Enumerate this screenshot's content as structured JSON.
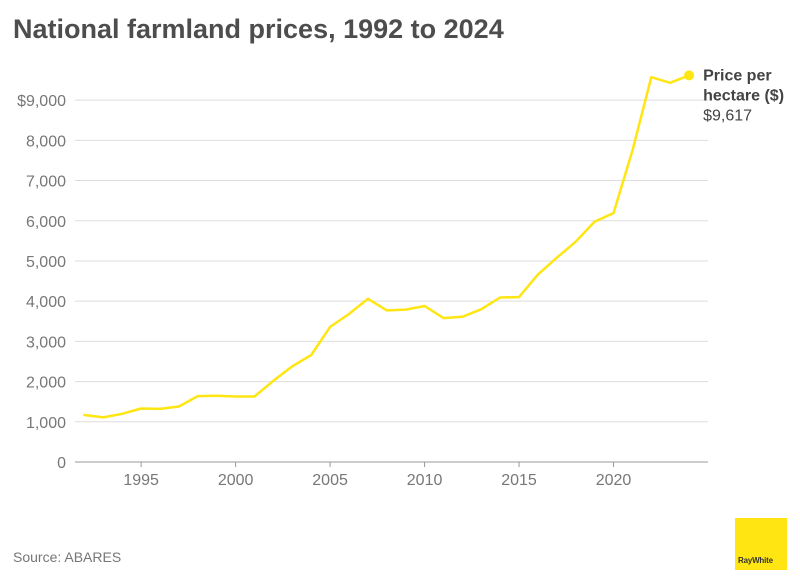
{
  "chart_data": {
    "type": "line",
    "title": "National farmland prices, 1992 to 2024",
    "source": "Source: ABARES",
    "xlabel": "",
    "ylabel": "",
    "xlim": [
      1991.5,
      2025
    ],
    "ylim": [
      0,
      9600
    ],
    "x_ticks": [
      1995,
      2000,
      2005,
      2010,
      2015,
      2020
    ],
    "y_ticks": [
      0,
      1000,
      2000,
      3000,
      4000,
      5000,
      6000,
      7000,
      8000,
      9000
    ],
    "y_tick_labels": [
      "0",
      "1,000",
      "2,000",
      "3,000",
      "4,000",
      "5,000",
      "6,000",
      "7,000",
      "8,000",
      "$9,000"
    ],
    "grid": true,
    "series": [
      {
        "name": "Price per hectare ($)",
        "name_lines": [
          "Price per",
          "hectare ($)"
        ],
        "end_label": "$9,617",
        "color": "#ffe512",
        "x": [
          1992,
          1993,
          1994,
          1995,
          1996,
          1997,
          1998,
          1999,
          2000,
          2001,
          2002,
          2003,
          2004,
          2005,
          2006,
          2007,
          2008,
          2009,
          2010,
          2011,
          2012,
          2013,
          2014,
          2015,
          2016,
          2017,
          2018,
          2019,
          2020,
          2021,
          2022,
          2023,
          2024
        ],
        "values": [
          1170,
          1110,
          1200,
          1330,
          1320,
          1380,
          1640,
          1650,
          1630,
          1630,
          2020,
          2380,
          2660,
          3360,
          3680,
          4060,
          3770,
          3790,
          3880,
          3580,
          3610,
          3800,
          4090,
          4100,
          4660,
          5080,
          5480,
          5980,
          6190,
          7740,
          9570,
          9430,
          9617
        ]
      }
    ]
  },
  "brand": {
    "logo_text": "RayWhite",
    "logo_color": "#ffe512"
  }
}
